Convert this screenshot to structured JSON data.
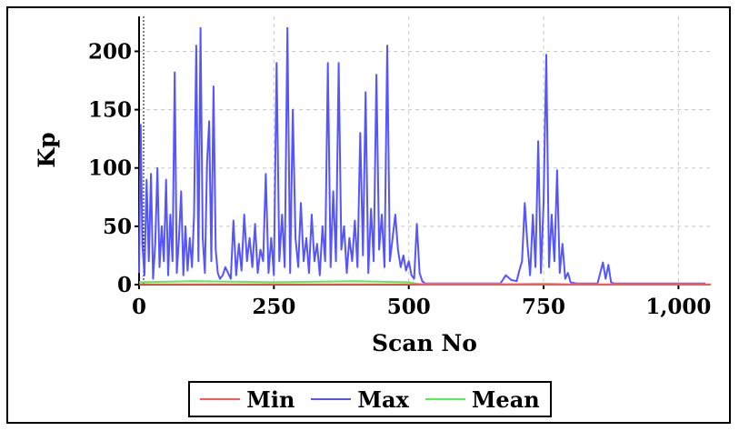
{
  "chart_data": {
    "type": "line",
    "xlabel": "Scan No",
    "ylabel": "Kp",
    "xlim": [
      0,
      1060
    ],
    "ylim": [
      0,
      230
    ],
    "xticks": [
      0,
      250,
      500,
      750,
      1000
    ],
    "xtick_labels": [
      "0",
      "250",
      "500",
      "750",
      "1,000"
    ],
    "yticks": [
      0,
      50,
      100,
      150,
      200
    ],
    "ytick_labels": [
      "0",
      "50",
      "100",
      "150",
      "200"
    ],
    "grid": true,
    "legend_position": "bottom",
    "series": [
      {
        "name": "Min",
        "color": "#ff5555",
        "x": [
          0,
          100,
          250,
          500,
          520,
          750,
          1000,
          1060
        ],
        "y": [
          0.2,
          0.2,
          0.2,
          0.2,
          0,
          0,
          0,
          0
        ]
      },
      {
        "name": "Max",
        "color": "#5555ff",
        "x": [
          0,
          3,
          6,
          10,
          14,
          18,
          22,
          26,
          30,
          34,
          38,
          42,
          46,
          50,
          54,
          58,
          62,
          66,
          70,
          74,
          78,
          82,
          86,
          90,
          94,
          98,
          102,
          106,
          110,
          114,
          118,
          122,
          126,
          130,
          134,
          138,
          142,
          146,
          150,
          155,
          160,
          165,
          170,
          175,
          180,
          185,
          190,
          195,
          200,
          205,
          210,
          215,
          220,
          225,
          230,
          235,
          240,
          245,
          250,
          255,
          260,
          265,
          270,
          275,
          280,
          285,
          290,
          295,
          300,
          305,
          310,
          315,
          320,
          325,
          330,
          335,
          340,
          345,
          350,
          355,
          360,
          365,
          370,
          375,
          380,
          385,
          390,
          395,
          400,
          405,
          410,
          415,
          420,
          425,
          430,
          435,
          440,
          445,
          450,
          455,
          460,
          465,
          470,
          475,
          480,
          485,
          490,
          495,
          500,
          505,
          510,
          515,
          520,
          525,
          530,
          560,
          600,
          640,
          670,
          680,
          690,
          700,
          705,
          710,
          715,
          720,
          725,
          730,
          735,
          740,
          745,
          750,
          755,
          760,
          765,
          770,
          775,
          780,
          785,
          790,
          795,
          800,
          810,
          830,
          850,
          860,
          865,
          870,
          875,
          880,
          900,
          950,
          1000,
          1050
        ],
        "y": [
          10,
          137,
          35,
          8,
          90,
          20,
          95,
          5,
          35,
          100,
          15,
          50,
          20,
          90,
          8,
          60,
          20,
          182,
          10,
          40,
          80,
          8,
          50,
          12,
          40,
          15,
          60,
          205,
          20,
          220,
          40,
          10,
          105,
          140,
          20,
          170,
          30,
          10,
          5,
          8,
          15,
          10,
          5,
          55,
          8,
          35,
          12,
          60,
          20,
          40,
          15,
          52,
          10,
          30,
          20,
          95,
          10,
          40,
          8,
          190,
          20,
          60,
          15,
          220,
          10,
          150,
          40,
          15,
          70,
          20,
          40,
          10,
          60,
          20,
          35,
          8,
          50,
          20,
          190,
          15,
          80,
          20,
          190,
          30,
          50,
          10,
          40,
          20,
          55,
          15,
          130,
          25,
          165,
          10,
          65,
          20,
          180,
          30,
          60,
          15,
          205,
          20,
          40,
          60,
          30,
          15,
          25,
          12,
          20,
          8,
          5,
          52,
          10,
          3,
          1,
          1,
          1,
          1,
          1,
          8,
          4,
          3,
          12,
          20,
          70,
          35,
          8,
          60,
          15,
          123,
          10,
          70,
          197,
          15,
          60,
          20,
          98,
          10,
          35,
          5,
          10,
          2,
          1,
          1,
          1,
          19,
          5,
          17,
          2,
          1,
          1,
          1,
          1,
          1
        ]
      },
      {
        "name": "Mean",
        "color": "#55ee55",
        "x": [
          0,
          100,
          250,
          400,
          500,
          520,
          700,
          750,
          800,
          1060
        ],
        "y": [
          2,
          3,
          2,
          3,
          2,
          0.5,
          0.5,
          1,
          0.3,
          0.3
        ]
      }
    ]
  }
}
